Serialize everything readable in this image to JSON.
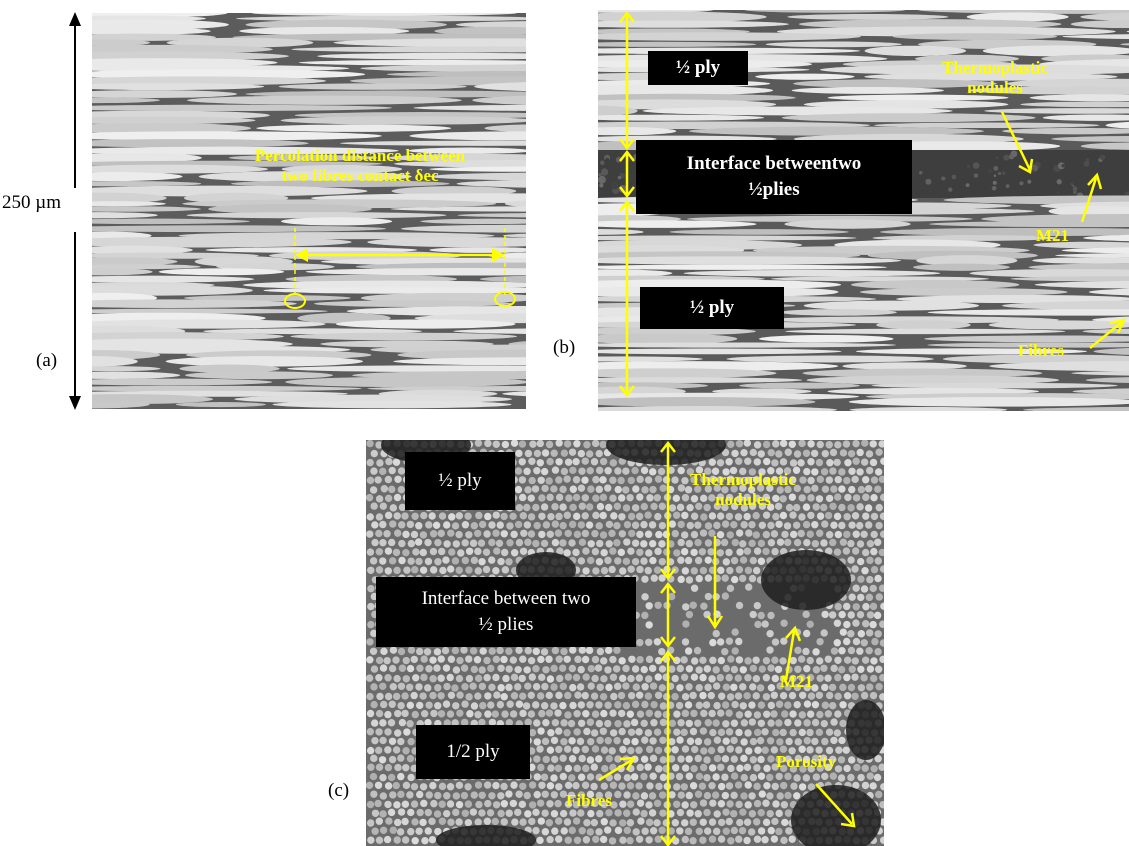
{
  "panel_a": {
    "label": "(a)",
    "scale_label": "250 µm",
    "annotation_line1": "Percolation distance between",
    "annotation_line2": "two fibres contact δec"
  },
  "panel_b": {
    "label": "(b)",
    "half_ply_top": "½ ply",
    "interface_line1": "Interface betweentwo",
    "interface_line2": "½plies",
    "half_ply_bottom": "½ ply",
    "thermoplastic_line1": "Thermoplastic",
    "thermoplastic_line2": "nodules",
    "m21": "M21",
    "fibres": "Fibres"
  },
  "panel_c": {
    "label": "(c)",
    "half_ply_top": "½ ply",
    "interface_line1": "Interface between two",
    "interface_line2": "½ plies",
    "half_ply_bottom": "1/2 ply",
    "thermoplastic_line1": "Thermoplastic",
    "thermoplastic_line2": "nodules",
    "m21": "M21",
    "fibres": "Fibres",
    "porosity": "Porosity"
  },
  "colors": {
    "annotation": "#ffff00",
    "label_box": "#000000",
    "scale_arrow": "#000000"
  }
}
